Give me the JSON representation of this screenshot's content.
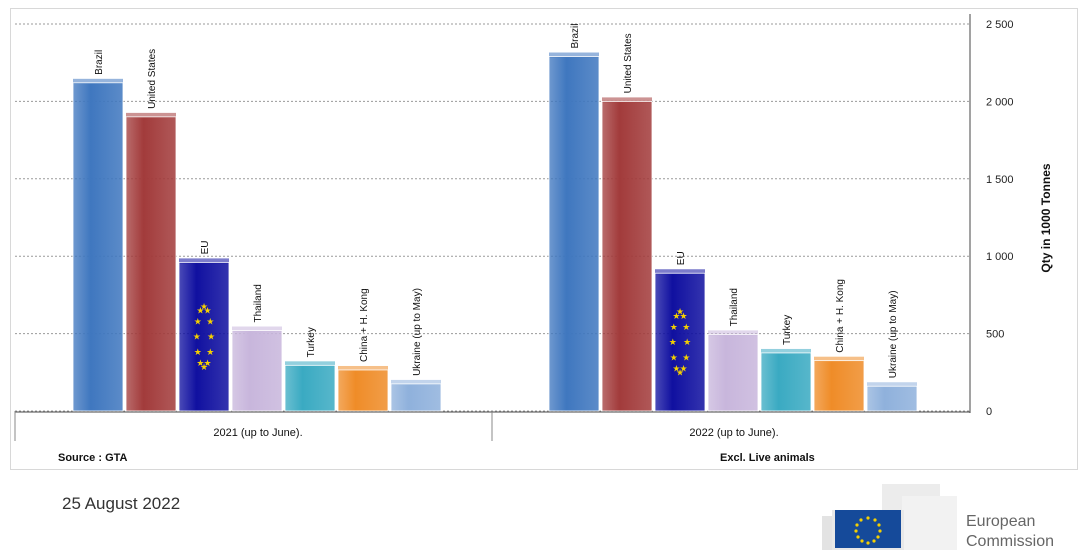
{
  "chart_data": {
    "type": "bar",
    "ylabel": "Qty in 1000 Tonnes",
    "ylim": [
      0,
      2500
    ],
    "yticks": [
      "0",
      "500",
      "1 000",
      "1 500",
      "2 000",
      "2 500"
    ],
    "groups": [
      {
        "label": "2021 (up to June).",
        "bars": [
          {
            "name": "Brazil",
            "value": 2120
          },
          {
            "name": "United States",
            "value": 1900
          },
          {
            "name": "EU",
            "value": 960
          },
          {
            "name": "Thailand",
            "value": 520
          },
          {
            "name": "Turkey",
            "value": 295
          },
          {
            "name": "China + H. Kong",
            "value": 265
          },
          {
            "name": "Ukraine (up to May)",
            "value": 175
          }
        ]
      },
      {
        "label": "2022 (up to June).",
        "bars": [
          {
            "name": "Brazil",
            "value": 2290
          },
          {
            "name": "United States",
            "value": 2000
          },
          {
            "name": "EU",
            "value": 890
          },
          {
            "name": "Thailand",
            "value": 495
          },
          {
            "name": "Turkey",
            "value": 375
          },
          {
            "name": "China + H. Kong",
            "value": 325
          },
          {
            "name": "Ukraine (up to May)",
            "value": 160
          }
        ]
      }
    ],
    "colors": [
      "#3f77bf",
      "#a23b3b",
      "#1010a0",
      "#c8b6dc",
      "#3aaac2",
      "#ef8c28",
      "#8fb1dc"
    ],
    "grid": true
  },
  "notes": {
    "source": "Source : GTA",
    "excl": "Excl. Live animals"
  },
  "footer": {
    "date": "25 August 2022",
    "org": "European\nCommission"
  }
}
